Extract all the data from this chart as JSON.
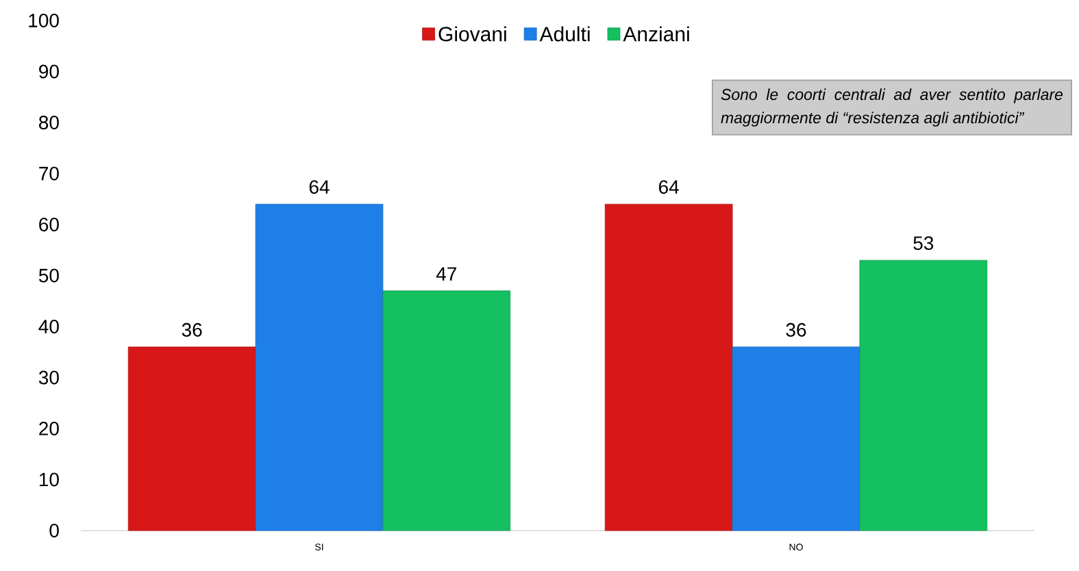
{
  "chart_data": {
    "type": "bar",
    "categories": [
      "SI",
      "NO"
    ],
    "series": [
      {
        "name": "Giovani",
        "color": "#d81818",
        "values": [
          36,
          64
        ]
      },
      {
        "name": "Adulti",
        "color": "#1e7fe8",
        "values": [
          64,
          36
        ]
      },
      {
        "name": "Anziani",
        "color": "#14c060",
        "values": [
          47,
          53
        ]
      }
    ],
    "ylim": [
      0,
      100
    ],
    "yticks": [
      0,
      10,
      20,
      30,
      40,
      50,
      60,
      70,
      80,
      90,
      100
    ],
    "data_labels": true,
    "grid": false,
    "legend": "top",
    "annotations": [
      "Sono le coorti centrali ad aver sentito parlare maggiormente di “resistenza agli antibiotici”"
    ]
  }
}
